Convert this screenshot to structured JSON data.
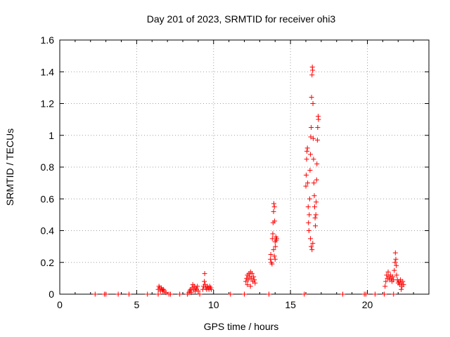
{
  "chart_data": {
    "type": "scatter",
    "title": "Day 201 of 2023, SRMTID for receiver ohi3",
    "xlabel": "GPS time / hours",
    "ylabel": "SRMTID / TECUs",
    "xlim": [
      0,
      24
    ],
    "ylim": [
      0,
      1.6
    ],
    "xticks": [
      0,
      5,
      10,
      15,
      20
    ],
    "xtick_labels": [
      "0",
      "5",
      "10",
      "15",
      "20"
    ],
    "yticks": [
      0,
      0.2,
      0.4,
      0.6,
      0.8,
      1.0,
      1.2,
      1.4,
      1.6
    ],
    "ytick_labels": [
      "0",
      "0.2",
      "0.4",
      "0.6",
      "0.8",
      "1",
      "1.2",
      "1.4",
      "1.6"
    ],
    "grid": true,
    "marker": "plus",
    "color": "#ff0000",
    "series": [
      {
        "name": "SRMTID",
        "points": [
          [
            2.3,
            0.0
          ],
          [
            2.9,
            0.0
          ],
          [
            3.0,
            0.0
          ],
          [
            3.8,
            0.0
          ],
          [
            4.5,
            0.0
          ],
          [
            5.7,
            0.0
          ],
          [
            6.4,
            0.0
          ],
          [
            6.4,
            0.03
          ],
          [
            6.45,
            0.05
          ],
          [
            6.5,
            0.04
          ],
          [
            6.55,
            0.02
          ],
          [
            6.6,
            0.04
          ],
          [
            6.65,
            0.03
          ],
          [
            6.7,
            0.02
          ],
          [
            6.75,
            0.03
          ],
          [
            6.8,
            0.02
          ],
          [
            6.9,
            0.01
          ],
          [
            7.1,
            0.0
          ],
          [
            7.2,
            0.0
          ],
          [
            7.8,
            0.0
          ],
          [
            8.3,
            0.0
          ],
          [
            8.4,
            0.01
          ],
          [
            8.45,
            0.02
          ],
          [
            8.5,
            0.03
          ],
          [
            8.55,
            0.01
          ],
          [
            8.6,
            0.04
          ],
          [
            8.65,
            0.06
          ],
          [
            8.7,
            0.03
          ],
          [
            8.75,
            0.05
          ],
          [
            8.8,
            0.02
          ],
          [
            8.85,
            0.04
          ],
          [
            8.9,
            0.03
          ],
          [
            8.95,
            0.05
          ],
          [
            9.0,
            0.02
          ],
          [
            9.1,
            0.0
          ],
          [
            9.3,
            0.03
          ],
          [
            9.35,
            0.05
          ],
          [
            9.4,
            0.08
          ],
          [
            9.42,
            0.13
          ],
          [
            9.45,
            0.06
          ],
          [
            9.5,
            0.04
          ],
          [
            9.55,
            0.03
          ],
          [
            9.6,
            0.05
          ],
          [
            9.65,
            0.04
          ],
          [
            9.7,
            0.03
          ],
          [
            9.75,
            0.05
          ],
          [
            9.8,
            0.04
          ],
          [
            9.85,
            0.03
          ],
          [
            11.1,
            0.0
          ],
          [
            12.0,
            0.0
          ],
          [
            12.1,
            0.08
          ],
          [
            12.15,
            0.1
          ],
          [
            12.2,
            0.12
          ],
          [
            12.25,
            0.09
          ],
          [
            12.3,
            0.13
          ],
          [
            12.35,
            0.11
          ],
          [
            12.4,
            0.14
          ],
          [
            12.45,
            0.1
          ],
          [
            12.5,
            0.13
          ],
          [
            12.55,
            0.08
          ],
          [
            12.6,
            0.11
          ],
          [
            12.65,
            0.09
          ],
          [
            12.7,
            0.07
          ],
          [
            12.2,
            0.06
          ],
          [
            12.4,
            0.05
          ],
          [
            13.6,
            0.0
          ],
          [
            13.7,
            0.22
          ],
          [
            13.72,
            0.25
          ],
          [
            13.75,
            0.2
          ],
          [
            13.8,
            0.19
          ],
          [
            13.82,
            0.35
          ],
          [
            13.85,
            0.38
          ],
          [
            13.87,
            0.45
          ],
          [
            13.9,
            0.52
          ],
          [
            13.92,
            0.57
          ],
          [
            13.95,
            0.55
          ],
          [
            13.97,
            0.46
          ],
          [
            14.0,
            0.33
          ],
          [
            14.02,
            0.3
          ],
          [
            14.05,
            0.36
          ],
          [
            14.07,
            0.34
          ],
          [
            14.1,
            0.35
          ],
          [
            13.9,
            0.28
          ],
          [
            13.95,
            0.24
          ],
          [
            14.0,
            0.22
          ],
          [
            15.9,
            0.0
          ],
          [
            16.0,
            0.68
          ],
          [
            16.02,
            0.75
          ],
          [
            16.05,
            0.85
          ],
          [
            16.07,
            0.9
          ],
          [
            16.1,
            0.92
          ],
          [
            16.12,
            0.7
          ],
          [
            16.15,
            0.55
          ],
          [
            16.17,
            0.45
          ],
          [
            16.2,
            0.4
          ],
          [
            16.22,
            0.5
          ],
          [
            16.25,
            0.6
          ],
          [
            16.27,
            0.78
          ],
          [
            16.3,
            0.88
          ],
          [
            16.32,
            0.99
          ],
          [
            16.35,
            1.05
          ],
          [
            16.37,
            1.24
          ],
          [
            16.4,
            1.38
          ],
          [
            16.42,
            1.43
          ],
          [
            16.44,
            1.41
          ],
          [
            16.46,
            1.2
          ],
          [
            16.48,
            0.98
          ],
          [
            16.5,
            0.85
          ],
          [
            16.52,
            0.7
          ],
          [
            16.55,
            0.62
          ],
          [
            16.57,
            0.55
          ],
          [
            16.6,
            0.48
          ],
          [
            16.62,
            0.43
          ],
          [
            16.65,
            0.5
          ],
          [
            16.67,
            0.58
          ],
          [
            16.7,
            0.72
          ],
          [
            16.72,
            0.82
          ],
          [
            16.75,
            0.97
          ],
          [
            16.77,
            1.05
          ],
          [
            16.8,
            1.12
          ],
          [
            16.82,
            1.1
          ],
          [
            16.3,
            0.35
          ],
          [
            16.35,
            0.3
          ],
          [
            16.4,
            0.28
          ],
          [
            16.45,
            0.32
          ],
          [
            18.4,
            0.0
          ],
          [
            19.8,
            0.0
          ],
          [
            19.9,
            0.0
          ],
          [
            20.5,
            0.0
          ],
          [
            21.1,
            0.0
          ],
          [
            21.15,
            0.05
          ],
          [
            21.2,
            0.08
          ],
          [
            21.25,
            0.12
          ],
          [
            21.3,
            0.1
          ],
          [
            21.35,
            0.14
          ],
          [
            21.4,
            0.11
          ],
          [
            21.45,
            0.09
          ],
          [
            21.5,
            0.12
          ],
          [
            21.55,
            0.1
          ],
          [
            21.6,
            0.08
          ],
          [
            21.65,
            0.11
          ],
          [
            21.7,
            0.09
          ],
          [
            21.75,
            0.15
          ],
          [
            21.8,
            0.2
          ],
          [
            21.82,
            0.26
          ],
          [
            21.85,
            0.22
          ],
          [
            21.88,
            0.18
          ],
          [
            21.9,
            0.12
          ],
          [
            21.95,
            0.09
          ],
          [
            22.0,
            0.07
          ],
          [
            22.05,
            0.08
          ],
          [
            22.1,
            0.06
          ],
          [
            22.15,
            0.09
          ],
          [
            22.2,
            0.07
          ],
          [
            22.25,
            0.05
          ],
          [
            22.3,
            0.08
          ],
          [
            22.35,
            0.06
          ],
          [
            21.7,
            0.0
          ],
          [
            22.2,
            0.03
          ]
        ]
      }
    ]
  }
}
